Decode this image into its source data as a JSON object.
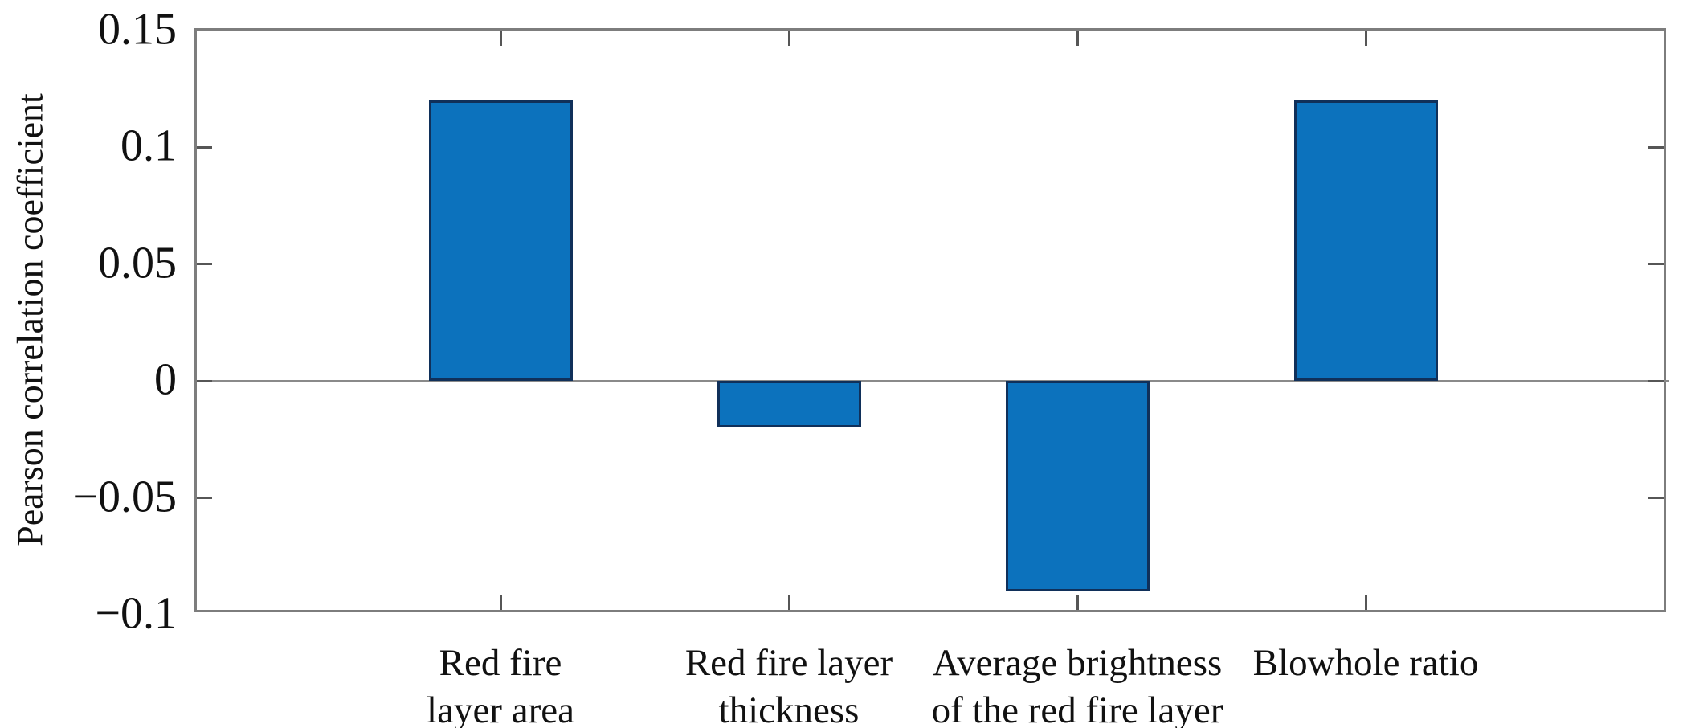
{
  "chart_data": {
    "type": "bar",
    "ylabel": "Pearson correlation coefficient",
    "categories": [
      "Red fire layer area",
      "Red fire layer thickness",
      "Average brightness of the red fire layer",
      "Blowhole ratio"
    ],
    "category_label_lines": [
      [
        "Red fire",
        "layer area"
      ],
      [
        "Red fire layer",
        "thickness"
      ],
      [
        "Average brightness",
        "of the red fire layer"
      ],
      [
        "Blowhole ratio"
      ]
    ],
    "values": [
      0.12,
      -0.02,
      -0.09,
      0.12
    ],
    "ylim": [
      -0.1,
      0.15
    ],
    "yticks": [
      {
        "value": 0.15,
        "label": "0.15"
      },
      {
        "value": 0.1,
        "label": "0.1"
      },
      {
        "value": 0.05,
        "label": "0.05"
      },
      {
        "value": 0,
        "label": "0"
      },
      {
        "value": -0.05,
        "label": "−0.05"
      },
      {
        "value": -0.1,
        "label": "−0.1"
      }
    ],
    "grid": false,
    "legend": false,
    "bar_color": "#0C72BD",
    "bar_edge_color": "#10305A",
    "axis_color": "#7D7D7D",
    "tick_color": "#565656",
    "zero_line_color": "#8A8A8A",
    "text_color": "#111111"
  }
}
